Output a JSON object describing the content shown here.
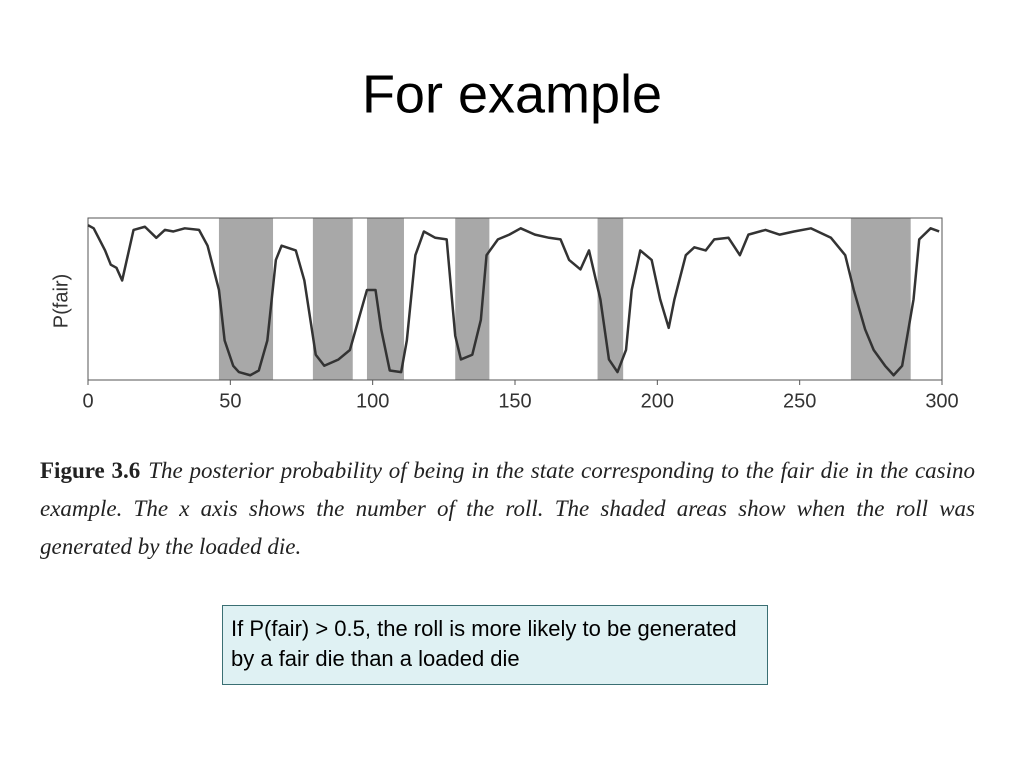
{
  "title": "For example",
  "chart_data": {
    "type": "line",
    "y_label": "P(fair)",
    "color": "#333333",
    "shade_color": "#a8a8a8",
    "x": [
      0,
      2,
      6,
      8,
      10,
      12,
      14,
      16,
      20,
      24,
      27,
      30,
      34,
      39,
      42,
      46,
      48,
      51,
      53,
      57,
      60,
      63,
      66,
      68,
      73,
      76,
      80,
      83,
      88,
      92,
      95,
      98,
      101,
      103,
      106,
      110,
      112,
      115,
      118,
      122,
      126,
      129,
      131,
      135,
      138,
      140,
      144,
      148,
      152,
      157,
      162,
      166,
      169,
      173,
      176,
      180,
      183,
      186,
      189,
      191,
      194,
      198,
      201,
      204,
      206,
      210,
      213,
      217,
      220,
      225,
      229,
      232,
      238,
      243,
      248,
      254,
      261,
      266,
      269,
      273,
      276,
      280,
      283,
      286,
      290,
      292,
      296,
      299
    ],
    "values": [
      0.98,
      0.96,
      0.82,
      0.73,
      0.71,
      0.63,
      0.79,
      0.95,
      0.97,
      0.9,
      0.95,
      0.94,
      0.96,
      0.95,
      0.85,
      0.57,
      0.25,
      0.09,
      0.05,
      0.03,
      0.06,
      0.25,
      0.76,
      0.85,
      0.82,
      0.63,
      0.16,
      0.09,
      0.13,
      0.19,
      0.38,
      0.57,
      0.57,
      0.32,
      0.06,
      0.05,
      0.25,
      0.79,
      0.94,
      0.9,
      0.89,
      0.28,
      0.13,
      0.16,
      0.38,
      0.79,
      0.89,
      0.92,
      0.96,
      0.92,
      0.9,
      0.89,
      0.76,
      0.7,
      0.82,
      0.51,
      0.13,
      0.05,
      0.19,
      0.57,
      0.82,
      0.76,
      0.51,
      0.33,
      0.51,
      0.79,
      0.84,
      0.82,
      0.89,
      0.9,
      0.79,
      0.92,
      0.95,
      0.92,
      0.94,
      0.96,
      0.9,
      0.79,
      0.57,
      0.32,
      0.19,
      0.09,
      0.03,
      0.09,
      0.51,
      0.89,
      0.96,
      0.94
    ],
    "shaded_regions": [
      {
        "start": 46,
        "end": 65
      },
      {
        "start": 79,
        "end": 93
      },
      {
        "start": 98,
        "end": 111
      },
      {
        "start": 129,
        "end": 141
      },
      {
        "start": 179,
        "end": 188
      },
      {
        "start": 268,
        "end": 289
      }
    ],
    "xlim": [
      0,
      300
    ],
    "xticks": [
      0,
      50,
      100,
      150,
      200,
      250,
      300
    ],
    "ylim": [
      0,
      1
    ]
  },
  "caption": {
    "label": "Figure 3.6",
    "text": "The posterior probability of being in the state corresponding to the fair die in the casino example. The x axis shows the number of the roll. The shaded areas show when the roll was generated by the loaded die."
  },
  "note": "If P(fair) > 0.5, the roll is more likely to be generated by a fair die than a loaded die"
}
